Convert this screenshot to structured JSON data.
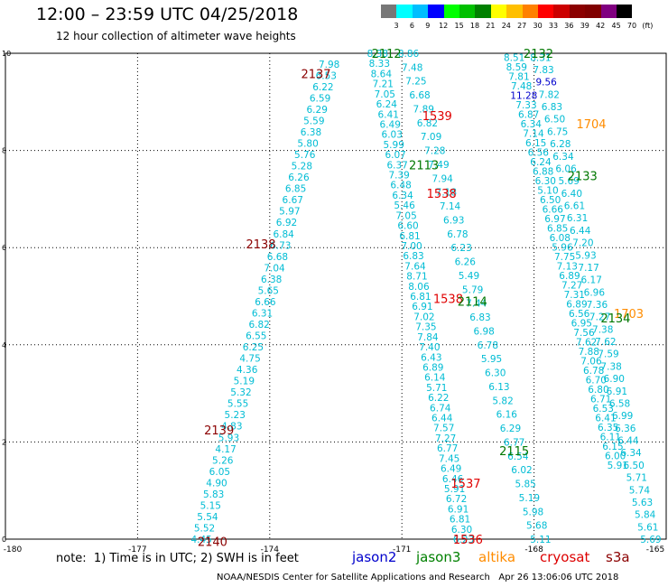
{
  "header": {
    "title": "12:00 – 23:59 UTC 04/25/2018",
    "subtitle": "12 hour collection of altimeter wave heights"
  },
  "legend_scale": {
    "labels": [
      "3",
      "6",
      "9",
      "12",
      "15",
      "18",
      "21",
      "24",
      "27",
      "30",
      "33",
      "36",
      "39",
      "42",
      "45",
      "70",
      "(ft)"
    ],
    "colors": [
      "#777777",
      "#00ffff",
      "#00bfff",
      "#0000ff",
      "#00ff00",
      "#00c000",
      "#008000",
      "#ffff00",
      "#ffbf00",
      "#ff8000",
      "#ff0000",
      "#cc0000",
      "#8b0000",
      "#800000",
      "#800080",
      "#000000"
    ]
  },
  "note": "note:  1) Time is in UTC; 2) SWH is in feet",
  "satellites": [
    {
      "name": "jason2",
      "color": "#0000cc"
    },
    {
      "name": "jason3",
      "color": "#008000"
    },
    {
      "name": "altika",
      "color": "#ff8c00"
    },
    {
      "name": "cryosat",
      "color": "#dd0000"
    },
    {
      "name": "s3a",
      "color": "#8b0000"
    }
  ],
  "footer": "NOAA/NESDIS Center for Satellite Applications and Research   Apr 26 13:06:06 UTC 2018",
  "chart_data": {
    "type": "scatter",
    "xlim": [
      -180,
      -165
    ],
    "ylim": [
      0,
      10
    ],
    "xticks": [
      "-180",
      "-177",
      "-174",
      "-171",
      "-168",
      "-165"
    ],
    "yticks": [
      "0",
      "2",
      "4",
      "6",
      "8",
      "10"
    ],
    "grid": true,
    "colors": {
      "cyan": "#00bcd4",
      "darkred": "#8b0000",
      "red": "#e00000",
      "green": "#007700",
      "orange": "#ff8c00",
      "blue": "#0000cc"
    },
    "tracks": [
      {
        "values": [
          "7.98",
          "6.53",
          "6.22",
          "6.59",
          "6.29",
          "5.59",
          "6.38",
          "5.80",
          "5.76",
          "5.28",
          "6.26",
          "6.85",
          "6.67",
          "5.97",
          "6.92",
          "6.84",
          "6.73",
          "6.68",
          "7.04",
          "6.38",
          "5.65",
          "6.66",
          "6.31",
          "6.82",
          "6.55",
          "6.25",
          "4.75",
          "4.36",
          "5.19",
          "5.32",
          "5.55",
          "5.23",
          "4.83",
          "5.93",
          "4.17",
          "5.26",
          "6.05",
          "4.90",
          "5.83",
          "5.15",
          "5.54",
          "5.52",
          "4.45"
        ],
        "y_top": 9.78,
        "y_bottom": 0.0,
        "x_top": -172.65,
        "x_bottom": -175.55
      },
      {
        "values": [
          "8.38",
          "8.33",
          "8.64",
          "7.21",
          "7.05",
          "6.24",
          "6.41",
          "6.49",
          "6.03",
          "5.99",
          "6.07",
          "6.37",
          "7.39",
          "6.48",
          "6.34",
          "5.46",
          "7.05",
          "6.60",
          "6.81",
          "7.00",
          "6.83",
          "7.64",
          "8.71",
          "8.06",
          "6.81",
          "6.91",
          "7.02",
          "7.35",
          "7.84",
          "7.40",
          "6.43",
          "6.89",
          "6.14",
          "5.71",
          "6.22",
          "6.74",
          "6.44",
          "7.57",
          "7.27",
          "6.77",
          "7.45",
          "6.49",
          "6.46",
          "5.91",
          "6.72",
          "6.91",
          "6.81",
          "6.30",
          "6.23"
        ],
        "y_top": 10.0,
        "y_bottom": 0.0,
        "x_top": -171.55,
        "x_bottom": -169.6
      },
      {
        "values": [
          "8.86",
          "7.48",
          "7.25",
          "6.68",
          "7.89",
          "6.82",
          "7.09",
          "7.28",
          "7.49",
          "7.94",
          "7.18",
          "7.14",
          "6.93",
          "6.78",
          "6.23",
          "6.26",
          "5.49",
          "5.79",
          "7.44",
          "6.83",
          "6.98",
          "6.78",
          "5.95",
          "6.30",
          "6.13",
          "5.82",
          "6.16",
          "6.29",
          "6.77",
          "6.54",
          "6.02",
          "5.85",
          "5.19",
          "5.98",
          "5.68",
          "5.11"
        ],
        "y_top": 10.0,
        "y_bottom": 0.0,
        "x_top": -170.85,
        "x_bottom": -167.85
      },
      {
        "values": [
          "8.51",
          "8.59",
          "7.81",
          "7.48",
          "11.28",
          "7.33",
          "6.87",
          "6.34",
          "7.14",
          "6.15",
          "6.56",
          "6.24",
          "6.88",
          "6.30",
          "5.10",
          "6.50",
          "6.66",
          "6.97",
          "6.85",
          "6.08",
          "5.96",
          "7.75",
          "7.13",
          "6.89",
          "7.27",
          "7.31",
          "6.89",
          "6.56",
          "6.95",
          "7.56",
          "7.62",
          "7.88",
          "7.06",
          "6.78",
          "6.70",
          "6.80",
          "6.71",
          "6.53",
          "6.41",
          "6.35",
          "6.11",
          "6.15",
          "6.00",
          "5.91"
        ],
        "y_top": 9.92,
        "y_bottom": 1.52,
        "x_top": -168.45,
        "x_bottom": -166.1
      },
      {
        "values": [
          "8.31",
          "7.83",
          "9.56",
          "7.82",
          "6.83",
          "6.50",
          "6.75",
          "6.28",
          "6.34",
          "6.06",
          "5.69",
          "6.40",
          "6.61",
          "6.31",
          "6.44",
          "7.20",
          "5.93",
          "7.17",
          "6.17",
          "6.96",
          "7.36",
          "7.27",
          "7.38",
          "7.62",
          "7.59",
          "7.38",
          "6.90",
          "6.91",
          "6.58",
          "6.99",
          "6.36",
          "6.44",
          "6.34",
          "6.50",
          "5.71",
          "5.74",
          "5.63",
          "5.84",
          "5.61",
          "5.69"
        ],
        "y_top": 9.92,
        "y_bottom": 0.0,
        "x_top": -167.85,
        "x_bottom": -165.35
      }
    ],
    "labels": [
      {
        "text": "2112",
        "x": -171.35,
        "y": 10.0,
        "color": "green"
      },
      {
        "text": "2132",
        "x": -167.9,
        "y": 10.0,
        "color": "green"
      },
      {
        "text": "2137",
        "x": -172.95,
        "y": 9.58,
        "color": "darkred"
      },
      {
        "text": "1539",
        "x": -170.2,
        "y": 8.72,
        "color": "red"
      },
      {
        "text": "1704",
        "x": -166.7,
        "y": 8.55,
        "color": "orange"
      },
      {
        "text": "2113",
        "x": -170.5,
        "y": 7.7,
        "color": "green"
      },
      {
        "text": "2133",
        "x": -166.9,
        "y": 7.48,
        "color": "green"
      },
      {
        "text": "1538",
        "x": -170.1,
        "y": 7.12,
        "color": "red"
      },
      {
        "text": "2138",
        "x": -174.2,
        "y": 6.08,
        "color": "darkred"
      },
      {
        "text": "1538",
        "x": -169.95,
        "y": 4.95,
        "color": "red"
      },
      {
        "text": "2114",
        "x": -169.4,
        "y": 4.9,
        "color": "green"
      },
      {
        "text": "1703",
        "x": -165.85,
        "y": 4.65,
        "color": "orange"
      },
      {
        "text": "2134",
        "x": -166.15,
        "y": 4.55,
        "color": "green"
      },
      {
        "text": "2139",
        "x": -175.15,
        "y": 2.25,
        "color": "darkred"
      },
      {
        "text": "2115",
        "x": -168.45,
        "y": 1.82,
        "color": "green"
      },
      {
        "text": "1537",
        "x": -169.55,
        "y": 1.15,
        "color": "red"
      },
      {
        "text": "1536",
        "x": -169.5,
        "y": 0.0,
        "color": "red"
      },
      {
        "text": "2140",
        "x": -175.3,
        "y": -0.05,
        "color": "darkred"
      }
    ]
  }
}
